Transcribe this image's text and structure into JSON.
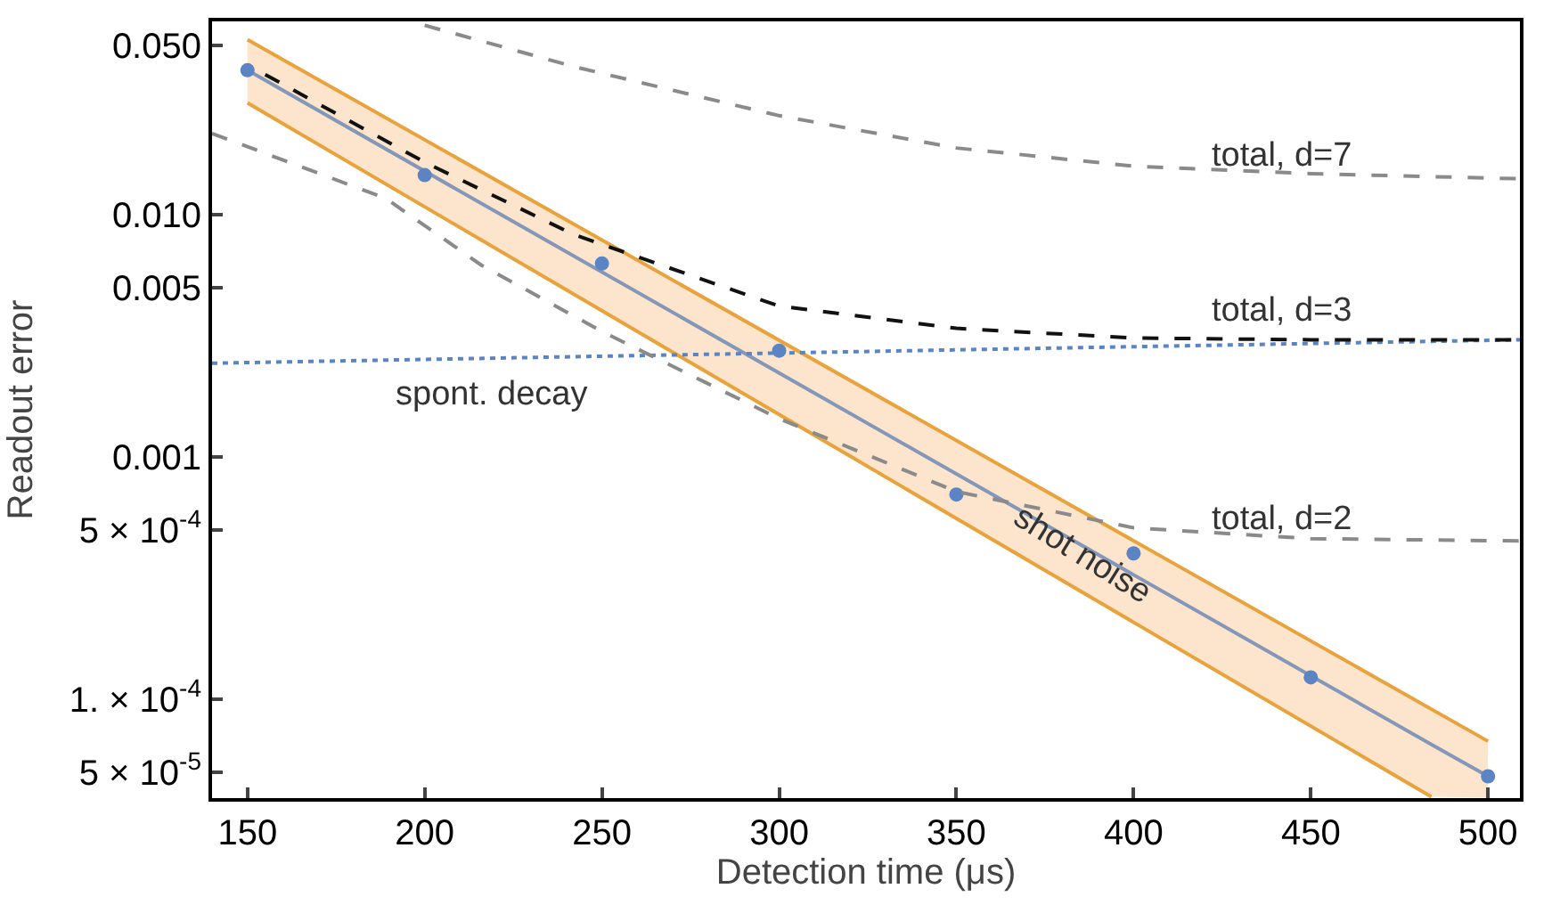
{
  "chart_data": {
    "type": "line",
    "xlabel": "Detection time (μs)",
    "ylabel": "Readout error",
    "log": "y",
    "xlim": [
      140,
      509
    ],
    "ylim": [
      3.9e-05,
      0.063
    ],
    "xticks": [
      150,
      200,
      250,
      300,
      350,
      400,
      450,
      500
    ],
    "yticks": [
      {
        "value": 0.05,
        "label": "0.050"
      },
      {
        "value": 0.01,
        "label": "0.010"
      },
      {
        "value": 0.005,
        "label": "0.005"
      },
      {
        "value": 0.001,
        "label": "0.001"
      },
      {
        "value": 0.0005,
        "label": "5 × 10$^{-4}$"
      },
      {
        "value": 0.0001,
        "label": "1. × 10$^{-4}$"
      },
      {
        "value": 5e-05,
        "label": "5 × 10$^{-5}$"
      }
    ],
    "series": [
      {
        "color": "#8497b8",
        "x": [
          150,
          484,
          500
        ],
        "values": [
          0.0396,
          6.5e-05,
          4.8e-05
        ],
        "lower": [
          0.029,
          3.95e-05,
          3.92e-05
        ],
        "upper": [
          0.053,
          9.1e-05,
          6.7e-05
        ],
        "line_style": "solid"
      },
      {
        "color": "#e8a33c",
        "x": [
          150,
          500
        ],
        "values": [
          0.053,
          6.7e-05
        ],
        "line_style": "solid"
      },
      {
        "color": "#e8a33c",
        "x": [
          150,
          484
        ],
        "values": [
          0.029,
          3.95e-05
        ],
        "line_style": "solid"
      },
      {
        "type": "scatter",
        "color": "#5b84c4",
        "marker": "circle",
        "x": [
          150,
          200,
          250,
          300,
          350,
          400,
          450,
          500
        ],
        "values": [
          0.0396,
          0.0146,
          0.0063,
          0.00275,
          0.0007,
          0.0004,
          0.000123,
          4.8e-05
        ]
      },
      {
        "color": "#5b84c4",
        "line_style": "dotted",
        "x": [
          140,
          509
        ],
        "values": [
          0.00244,
          0.00305
        ]
      },
      {
        "color": "#111111",
        "line_style": "dashed",
        "x": [
          155,
          200,
          242,
          300,
          350,
          400,
          450,
          509
        ],
        "values": [
          0.038,
          0.0165,
          0.0083,
          0.0042,
          0.0034,
          0.0031,
          0.00305,
          0.00305
        ]
      },
      {
        "color": "#8a8a8a",
        "line_style": "dashed",
        "x": [
          140,
          189,
          216,
          250,
          300,
          350,
          400,
          450,
          509
        ],
        "values": [
          0.0217,
          0.0117,
          0.0062,
          0.0033,
          0.00144,
          0.00072,
          0.00051,
          0.00046,
          0.00045
        ]
      },
      {
        "color": "#8a8a8a",
        "line_style": "dashed",
        "x": [
          200,
          242,
          300,
          350,
          400,
          450,
          509
        ],
        "values": [
          0.0607,
          0.041,
          0.0257,
          0.0189,
          0.0159,
          0.0148,
          0.0141
        ]
      }
    ],
    "annotations": [
      "total, d=7",
      "total, d=3",
      "total, d=2",
      "spont. decay",
      "shot noise"
    ]
  }
}
